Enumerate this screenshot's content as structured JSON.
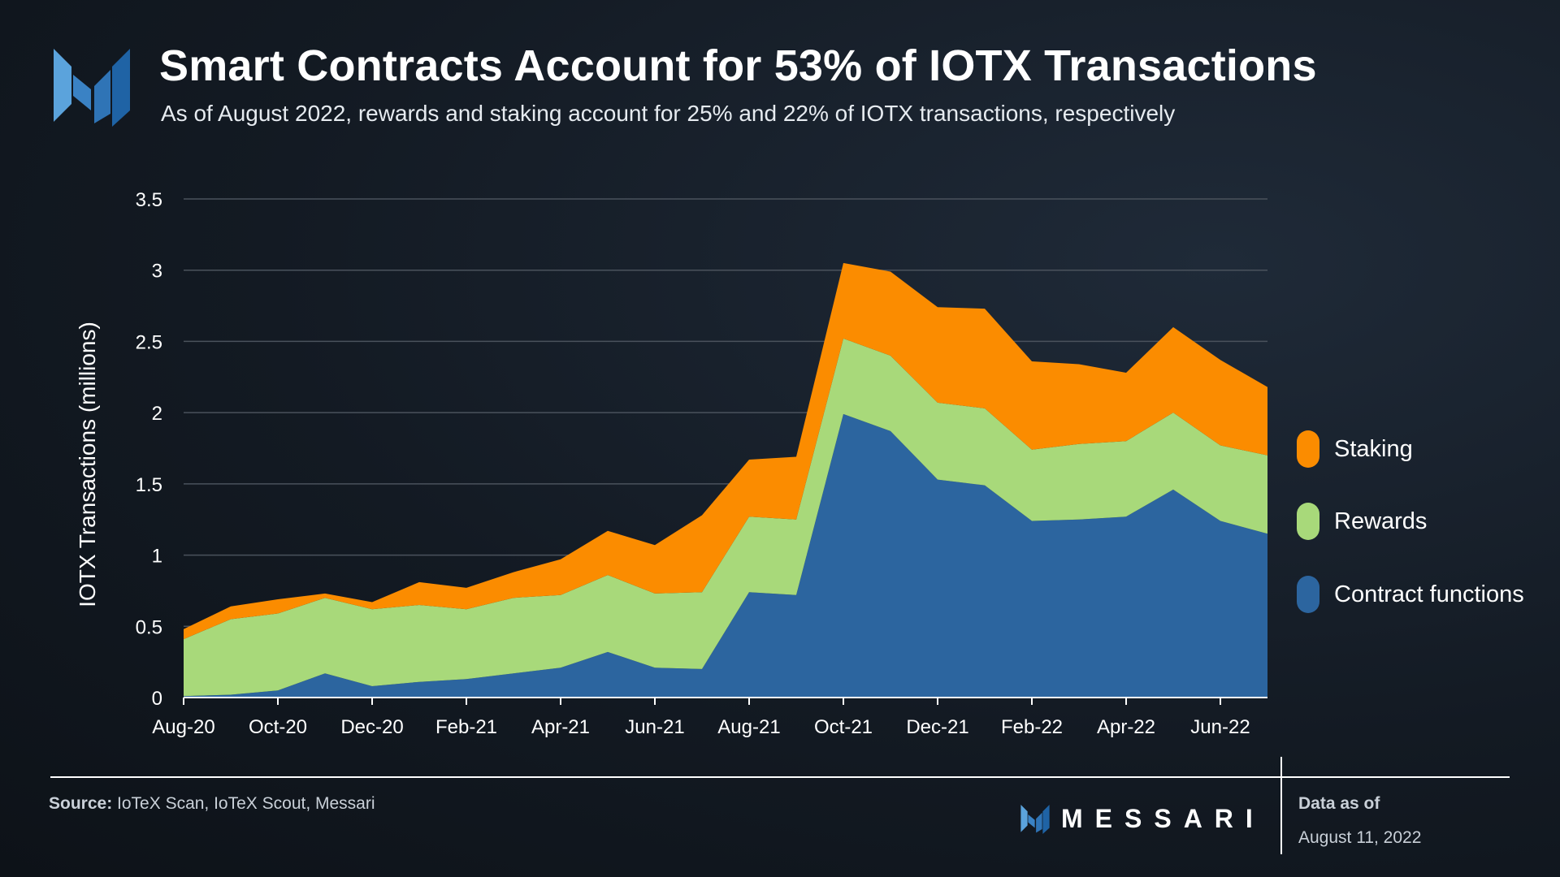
{
  "header": {
    "title": "Smart Contracts Account for 53% of IOTX Transactions",
    "subtitle": "As of August 2022, rewards and staking account for 25% and 22% of IOTX transactions, respectively"
  },
  "icons": {
    "logo": "messari-logo-icon"
  },
  "colors": {
    "staking": "#fb8c00",
    "rewards": "#a8d97a",
    "contract_functions": "#2c659f",
    "grid": "#4a525c",
    "axis_text": "#ffffff"
  },
  "chart_data": {
    "type": "area",
    "stacked": true,
    "title": "Smart Contracts Account for 53% of IOTX Transactions",
    "xlabel": "",
    "ylabel": "IOTX Transactions (millions)",
    "ylim": [
      0,
      3.5
    ],
    "yticks": [
      0,
      0.5,
      1,
      1.5,
      2,
      2.5,
      3,
      3.5
    ],
    "ytick_labels": [
      "0",
      "0.5",
      "1",
      "1.5",
      "2",
      "2.5",
      "3",
      "3.5"
    ],
    "grid": true,
    "legend_position": "right",
    "x": [
      "Aug-20",
      "Sep-20",
      "Oct-20",
      "Nov-20",
      "Dec-20",
      "Jan-21",
      "Feb-21",
      "Mar-21",
      "Apr-21",
      "May-21",
      "Jun-21",
      "Jul-21",
      "Aug-21",
      "Sep-21",
      "Oct-21",
      "Nov-21",
      "Dec-21",
      "Jan-22",
      "Feb-22",
      "Mar-22",
      "Apr-22",
      "May-22",
      "Jun-22",
      "Jul-22"
    ],
    "xtick_labels": [
      "Aug-20",
      "Oct-20",
      "Dec-20",
      "Feb-21",
      "Apr-21",
      "Jun-21",
      "Aug-21",
      "Oct-21",
      "Dec-21",
      "Feb-22",
      "Apr-22",
      "Jun-22"
    ],
    "series": [
      {
        "name": "Contract functions",
        "values": [
          0.01,
          0.02,
          0.05,
          0.17,
          0.08,
          0.11,
          0.13,
          0.17,
          0.21,
          0.32,
          0.21,
          0.2,
          0.74,
          0.72,
          1.99,
          1.87,
          1.53,
          1.49,
          1.24,
          1.25,
          1.27,
          1.46,
          1.24,
          1.15
        ]
      },
      {
        "name": "Rewards",
        "values": [
          0.4,
          0.53,
          0.54,
          0.53,
          0.54,
          0.54,
          0.49,
          0.53,
          0.51,
          0.54,
          0.52,
          0.54,
          0.53,
          0.53,
          0.53,
          0.53,
          0.54,
          0.54,
          0.5,
          0.53,
          0.53,
          0.54,
          0.53,
          0.55
        ]
      },
      {
        "name": "Staking",
        "values": [
          0.07,
          0.09,
          0.1,
          0.03,
          0.05,
          0.16,
          0.15,
          0.18,
          0.25,
          0.31,
          0.34,
          0.54,
          0.4,
          0.44,
          0.53,
          0.59,
          0.67,
          0.7,
          0.62,
          0.56,
          0.48,
          0.6,
          0.6,
          0.48
        ]
      }
    ]
  },
  "legend": {
    "items": [
      {
        "label": "Staking"
      },
      {
        "label": "Rewards"
      },
      {
        "label": "Contract functions"
      }
    ]
  },
  "footer": {
    "source_label": "Source:",
    "source_text": "IoTeX Scan, IoTeX Scout, Messari",
    "brand": "MESSARI",
    "data_as_of_label": "Data as of",
    "data_as_of_date": "August 11, 2022"
  }
}
